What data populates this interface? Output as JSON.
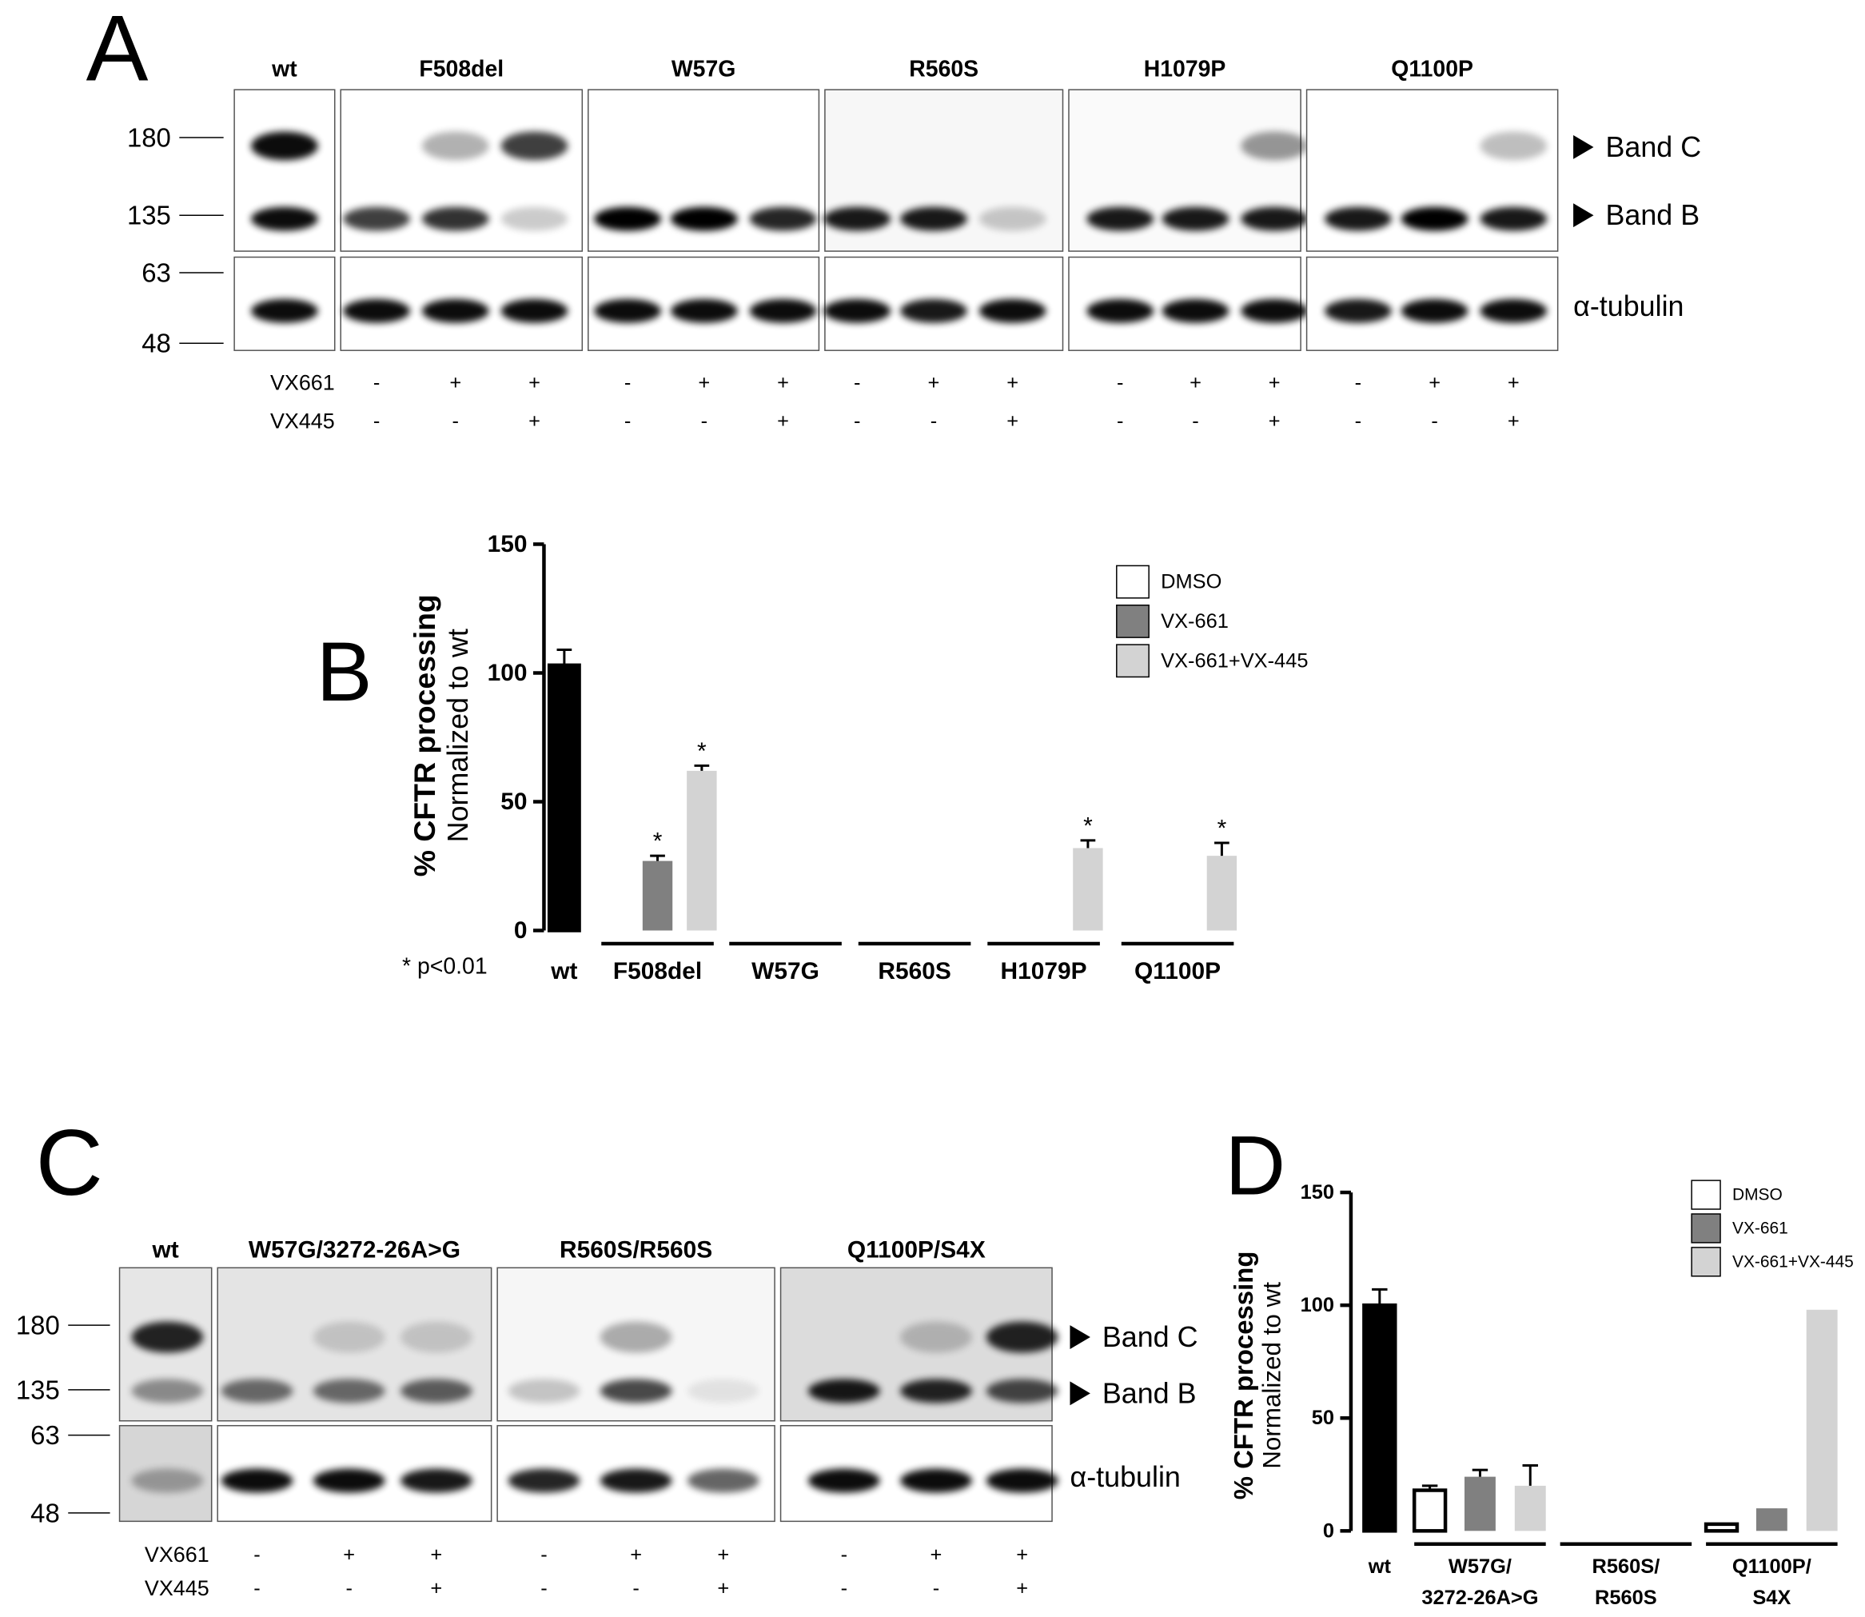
{
  "panels": {
    "a": "A",
    "b": "B",
    "c": "C",
    "d": "D"
  },
  "blot_a": {
    "lanes": [
      "wt",
      "F508del",
      "W57G",
      "R560S",
      "H1079P",
      "Q1100P"
    ],
    "markers": [
      180,
      135,
      63,
      48
    ],
    "band_labels": [
      "Band C",
      "Band B",
      "α-tubulin"
    ],
    "treatments": [
      {
        "name": "VX661",
        "signs": [
          "-",
          "+",
          "+",
          "-",
          "+",
          "+",
          "-",
          "+",
          "+",
          "-",
          "+",
          "+",
          "-",
          "+",
          "+"
        ]
      },
      {
        "name": "VX445",
        "signs": [
          "-",
          "-",
          "+",
          "-",
          "-",
          "+",
          "-",
          "-",
          "+",
          "-",
          "-",
          "+",
          "-",
          "-",
          "+"
        ]
      }
    ]
  },
  "blot_c": {
    "lanes": [
      "wt",
      "W57G/3272-26A>G",
      "R560S/R560S",
      "Q1100P/S4X"
    ],
    "markers": [
      180,
      135,
      63,
      48
    ],
    "band_labels": [
      "Band C",
      "Band B",
      "α-tubulin"
    ],
    "treatments": [
      {
        "name": "VX661",
        "signs": [
          "-",
          "+",
          "+",
          "-",
          "+",
          "+",
          "-",
          "+",
          "+"
        ]
      },
      {
        "name": "VX445",
        "signs": [
          "-",
          "-",
          "+",
          "-",
          "-",
          "+",
          "-",
          "-",
          "+"
        ]
      }
    ]
  },
  "chart_data": [
    {
      "type": "bar",
      "ylabel": "% CFTR processing",
      "ylabel2": "Normalized to wt",
      "categories": [
        "wt",
        "F508del",
        "W57G",
        "R560S",
        "H1079P",
        "Q1100P"
      ],
      "series": [
        {
          "name": "DMSO",
          "color": "#ffffff",
          "values": [
            103,
            0,
            0,
            0,
            0,
            0
          ],
          "errors": [
            6,
            null,
            null,
            null,
            null,
            null
          ]
        },
        {
          "name": "VX-661",
          "color": "#808080",
          "values": [
            null,
            27,
            0,
            0,
            0,
            0
          ],
          "errors": [
            null,
            2,
            null,
            null,
            null,
            null
          ],
          "markers": [
            null,
            "*",
            null,
            null,
            null,
            null
          ]
        },
        {
          "name": "VX-661+VX-445",
          "color": "#d3d3d3",
          "values": [
            null,
            62,
            0,
            0,
            32,
            29
          ],
          "errors": [
            null,
            2,
            null,
            null,
            3,
            5
          ],
          "markers": [
            null,
            "*",
            null,
            null,
            "*",
            "*"
          ]
        }
      ],
      "first_bar_color": "#000000",
      "ylim": [
        0,
        150
      ],
      "yticks": [
        0,
        50,
        100,
        150
      ],
      "note": "* p<0.01"
    },
    {
      "type": "bar",
      "ylabel": "% CFTR processing",
      "ylabel2": "Normalized to wt",
      "categories": [
        [
          "wt"
        ],
        [
          "W57G/",
          "3272-26A>G"
        ],
        [
          "R560S/",
          "R560S"
        ],
        [
          "Q1100P/",
          "S4X"
        ]
      ],
      "series": [
        {
          "name": "DMSO",
          "color": "#ffffff",
          "values": [
            100,
            18,
            0,
            3
          ],
          "errors": [
            7,
            2,
            null,
            null
          ]
        },
        {
          "name": "VX-661",
          "color": "#808080",
          "values": [
            null,
            24,
            0,
            10
          ],
          "errors": [
            null,
            3,
            null,
            null
          ]
        },
        {
          "name": "VX-661+VX-445",
          "color": "#d3d3d3",
          "values": [
            null,
            20,
            0,
            98
          ],
          "errors": [
            null,
            9,
            null,
            null
          ]
        }
      ],
      "first_bar_color": "#000000",
      "ylim": [
        0,
        150
      ],
      "yticks": [
        0,
        50,
        100,
        150
      ]
    }
  ]
}
